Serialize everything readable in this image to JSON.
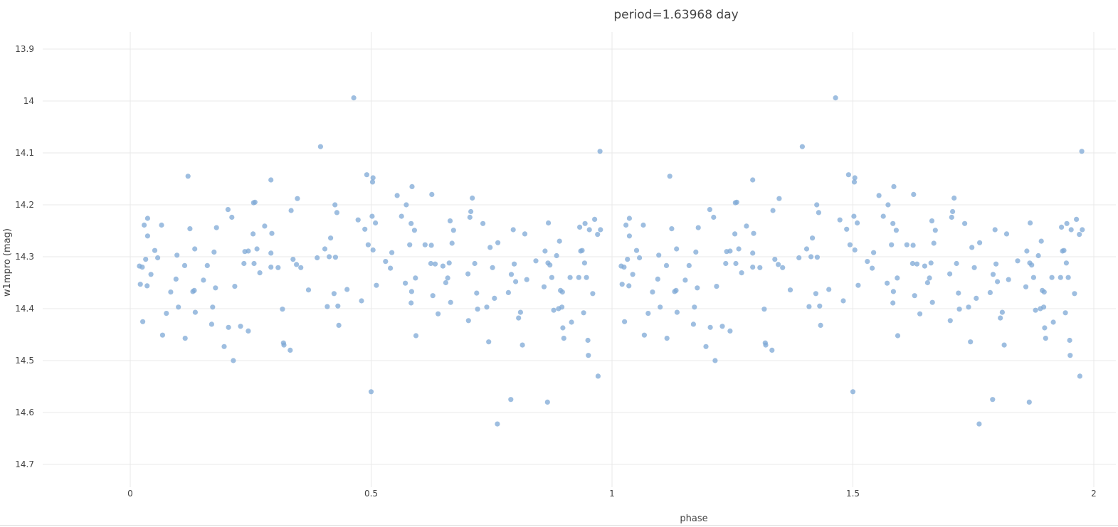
{
  "chart_data": {
    "type": "scatter",
    "title": "period=1.63968 day",
    "xlabel": "phase",
    "ylabel": "w1mpro (mag)",
    "xlim": [
      -0.2,
      2.05
    ],
    "ylim": [
      14.75,
      13.88
    ],
    "y_reversed": true,
    "grid": true,
    "x_ticks": [
      "0",
      "0.5",
      "1",
      "1.5",
      "2"
    ],
    "y_ticks": [
      "13.9",
      "14",
      "14.1",
      "14.2",
      "14.3",
      "14.4",
      "14.5",
      "14.6",
      "14.7"
    ],
    "color": "#7ea8d6",
    "series": [
      {
        "points": [
          [
            0.019,
            14.318
          ],
          [
            0.021,
            14.353
          ],
          [
            0.025,
            14.32
          ],
          [
            0.026,
            14.425
          ],
          [
            0.029,
            14.239
          ],
          [
            0.032,
            14.305
          ],
          [
            0.035,
            14.356
          ],
          [
            0.036,
            14.226
          ],
          [
            0.036,
            14.26
          ],
          [
            0.043,
            14.334
          ],
          [
            0.051,
            14.288
          ],
          [
            0.057,
            14.302
          ],
          [
            0.065,
            14.239
          ],
          [
            0.067,
            14.451
          ],
          [
            0.075,
            14.409
          ],
          [
            0.084,
            14.368
          ],
          [
            0.095,
            14.343
          ],
          [
            0.097,
            14.297
          ],
          [
            0.1,
            14.397
          ],
          [
            0.113,
            14.317
          ],
          [
            0.114,
            14.457
          ],
          [
            0.12,
            14.145
          ],
          [
            0.124,
            14.246
          ],
          [
            0.13,
            14.367
          ],
          [
            0.133,
            14.365
          ],
          [
            0.134,
            14.285
          ],
          [
            0.135,
            14.407
          ],
          [
            0.152,
            14.345
          ],
          [
            0.16,
            14.317
          ],
          [
            0.169,
            14.43
          ],
          [
            0.171,
            14.397
          ],
          [
            0.174,
            14.291
          ],
          [
            0.177,
            14.36
          ],
          [
            0.179,
            14.244
          ],
          [
            0.195,
            14.473
          ],
          [
            0.203,
            14.209
          ],
          [
            0.204,
            14.436
          ],
          [
            0.211,
            14.224
          ],
          [
            0.214,
            14.5
          ],
          [
            0.217,
            14.357
          ],
          [
            0.229,
            14.434
          ],
          [
            0.236,
            14.313
          ],
          [
            0.238,
            14.29
          ],
          [
            0.245,
            14.289
          ],
          [
            0.245,
            14.443
          ],
          [
            0.255,
            14.256
          ],
          [
            0.256,
            14.196
          ],
          [
            0.257,
            14.313
          ],
          [
            0.259,
            14.195
          ],
          [
            0.263,
            14.285
          ],
          [
            0.269,
            14.331
          ],
          [
            0.279,
            14.241
          ],
          [
            0.292,
            14.32
          ],
          [
            0.292,
            14.293
          ],
          [
            0.292,
            14.152
          ],
          [
            0.294,
            14.255
          ],
          [
            0.307,
            14.321
          ],
          [
            0.316,
            14.401
          ],
          [
            0.318,
            14.466
          ],
          [
            0.319,
            14.47
          ],
          [
            0.332,
            14.48
          ],
          [
            0.334,
            14.211
          ],
          [
            0.338,
            14.305
          ],
          [
            0.345,
            14.315
          ],
          [
            0.347,
            14.188
          ],
          [
            0.354,
            14.321
          ],
          [
            0.37,
            14.364
          ],
          [
            0.388,
            14.302
          ],
          [
            0.395,
            14.088
          ],
          [
            0.404,
            14.285
          ],
          [
            0.409,
            14.396
          ],
          [
            0.413,
            14.3
          ],
          [
            0.416,
            14.264
          ],
          [
            0.423,
            14.371
          ],
          [
            0.425,
            14.2
          ],
          [
            0.426,
            14.301
          ],
          [
            0.429,
            14.215
          ],
          [
            0.431,
            14.395
          ],
          [
            0.433,
            14.432
          ],
          [
            0.45,
            14.363
          ],
          [
            0.464,
            13.994
          ],
          [
            0.473,
            14.229
          ],
          [
            0.48,
            14.385
          ],
          [
            0.487,
            14.247
          ],
          [
            0.491,
            14.142
          ],
          [
            0.494,
            14.277
          ],
          [
            0.5,
            14.56
          ],
          [
            0.502,
            14.222
          ],
          [
            0.503,
            14.156
          ],
          [
            0.504,
            14.148
          ],
          [
            0.504,
            14.287
          ],
          [
            0.509,
            14.235
          ],
          [
            0.511,
            14.355
          ],
          [
            0.53,
            14.309
          ],
          [
            0.54,
            14.322
          ],
          [
            0.543,
            14.292
          ],
          [
            0.554,
            14.182
          ],
          [
            0.563,
            14.222
          ],
          [
            0.571,
            14.351
          ],
          [
            0.573,
            14.2
          ],
          [
            0.58,
            14.277
          ],
          [
            0.583,
            14.236
          ],
          [
            0.583,
            14.389
          ],
          [
            0.584,
            14.367
          ],
          [
            0.585,
            14.165
          ],
          [
            0.59,
            14.249
          ],
          [
            0.592,
            14.341
          ],
          [
            0.593,
            14.452
          ],
          [
            0.612,
            14.277
          ],
          [
            0.624,
            14.313
          ],
          [
            0.625,
            14.278
          ],
          [
            0.626,
            14.18
          ],
          [
            0.628,
            14.375
          ],
          [
            0.633,
            14.314
          ],
          [
            0.639,
            14.41
          ],
          [
            0.649,
            14.318
          ],
          [
            0.655,
            14.35
          ],
          [
            0.659,
            14.341
          ],
          [
            0.662,
            14.312
          ],
          [
            0.664,
            14.231
          ],
          [
            0.665,
            14.388
          ],
          [
            0.668,
            14.274
          ],
          [
            0.671,
            14.249
          ],
          [
            0.701,
            14.333
          ],
          [
            0.702,
            14.423
          ],
          [
            0.705,
            14.224
          ],
          [
            0.707,
            14.213
          ],
          [
            0.71,
            14.187
          ],
          [
            0.715,
            14.313
          ],
          [
            0.719,
            14.37
          ],
          [
            0.721,
            14.401
          ],
          [
            0.732,
            14.236
          ],
          [
            0.74,
            14.397
          ],
          [
            0.744,
            14.464
          ],
          [
            0.747,
            14.282
          ],
          [
            0.752,
            14.321
          ],
          [
            0.756,
            14.38
          ],
          [
            0.762,
            14.622
          ],
          [
            0.763,
            14.273
          ],
          [
            0.785,
            14.369
          ],
          [
            0.79,
            14.575
          ],
          [
            0.791,
            14.334
          ],
          [
            0.795,
            14.248
          ],
          [
            0.797,
            14.314
          ],
          [
            0.8,
            14.348
          ],
          [
            0.806,
            14.418
          ],
          [
            0.81,
            14.407
          ],
          [
            0.814,
            14.47
          ],
          [
            0.819,
            14.256
          ],
          [
            0.823,
            14.344
          ],
          [
            0.842,
            14.308
          ],
          [
            0.859,
            14.358
          ],
          [
            0.861,
            14.289
          ],
          [
            0.866,
            14.58
          ],
          [
            0.867,
            14.312
          ],
          [
            0.868,
            14.235
          ],
          [
            0.871,
            14.316
          ],
          [
            0.875,
            14.34
          ],
          [
            0.879,
            14.403
          ],
          [
            0.885,
            14.298
          ],
          [
            0.889,
            14.4
          ],
          [
            0.891,
            14.27
          ],
          [
            0.893,
            14.365
          ],
          [
            0.896,
            14.397
          ],
          [
            0.897,
            14.368
          ],
          [
            0.898,
            14.437
          ],
          [
            0.9,
            14.457
          ],
          [
            0.913,
            14.34
          ],
          [
            0.916,
            14.426
          ],
          [
            0.931,
            14.34
          ],
          [
            0.933,
            14.243
          ],
          [
            0.935,
            14.289
          ],
          [
            0.938,
            14.288
          ],
          [
            0.941,
            14.408
          ],
          [
            0.943,
            14.312
          ],
          [
            0.944,
            14.236
          ],
          [
            0.947,
            14.34
          ],
          [
            0.95,
            14.461
          ],
          [
            0.951,
            14.49
          ],
          [
            0.953,
            14.248
          ],
          [
            0.96,
            14.371
          ],
          [
            0.964,
            14.228
          ],
          [
            0.97,
            14.257
          ],
          [
            0.971,
            14.53
          ],
          [
            0.975,
            14.097
          ],
          [
            0.976,
            14.248
          ]
        ]
      }
    ]
  }
}
